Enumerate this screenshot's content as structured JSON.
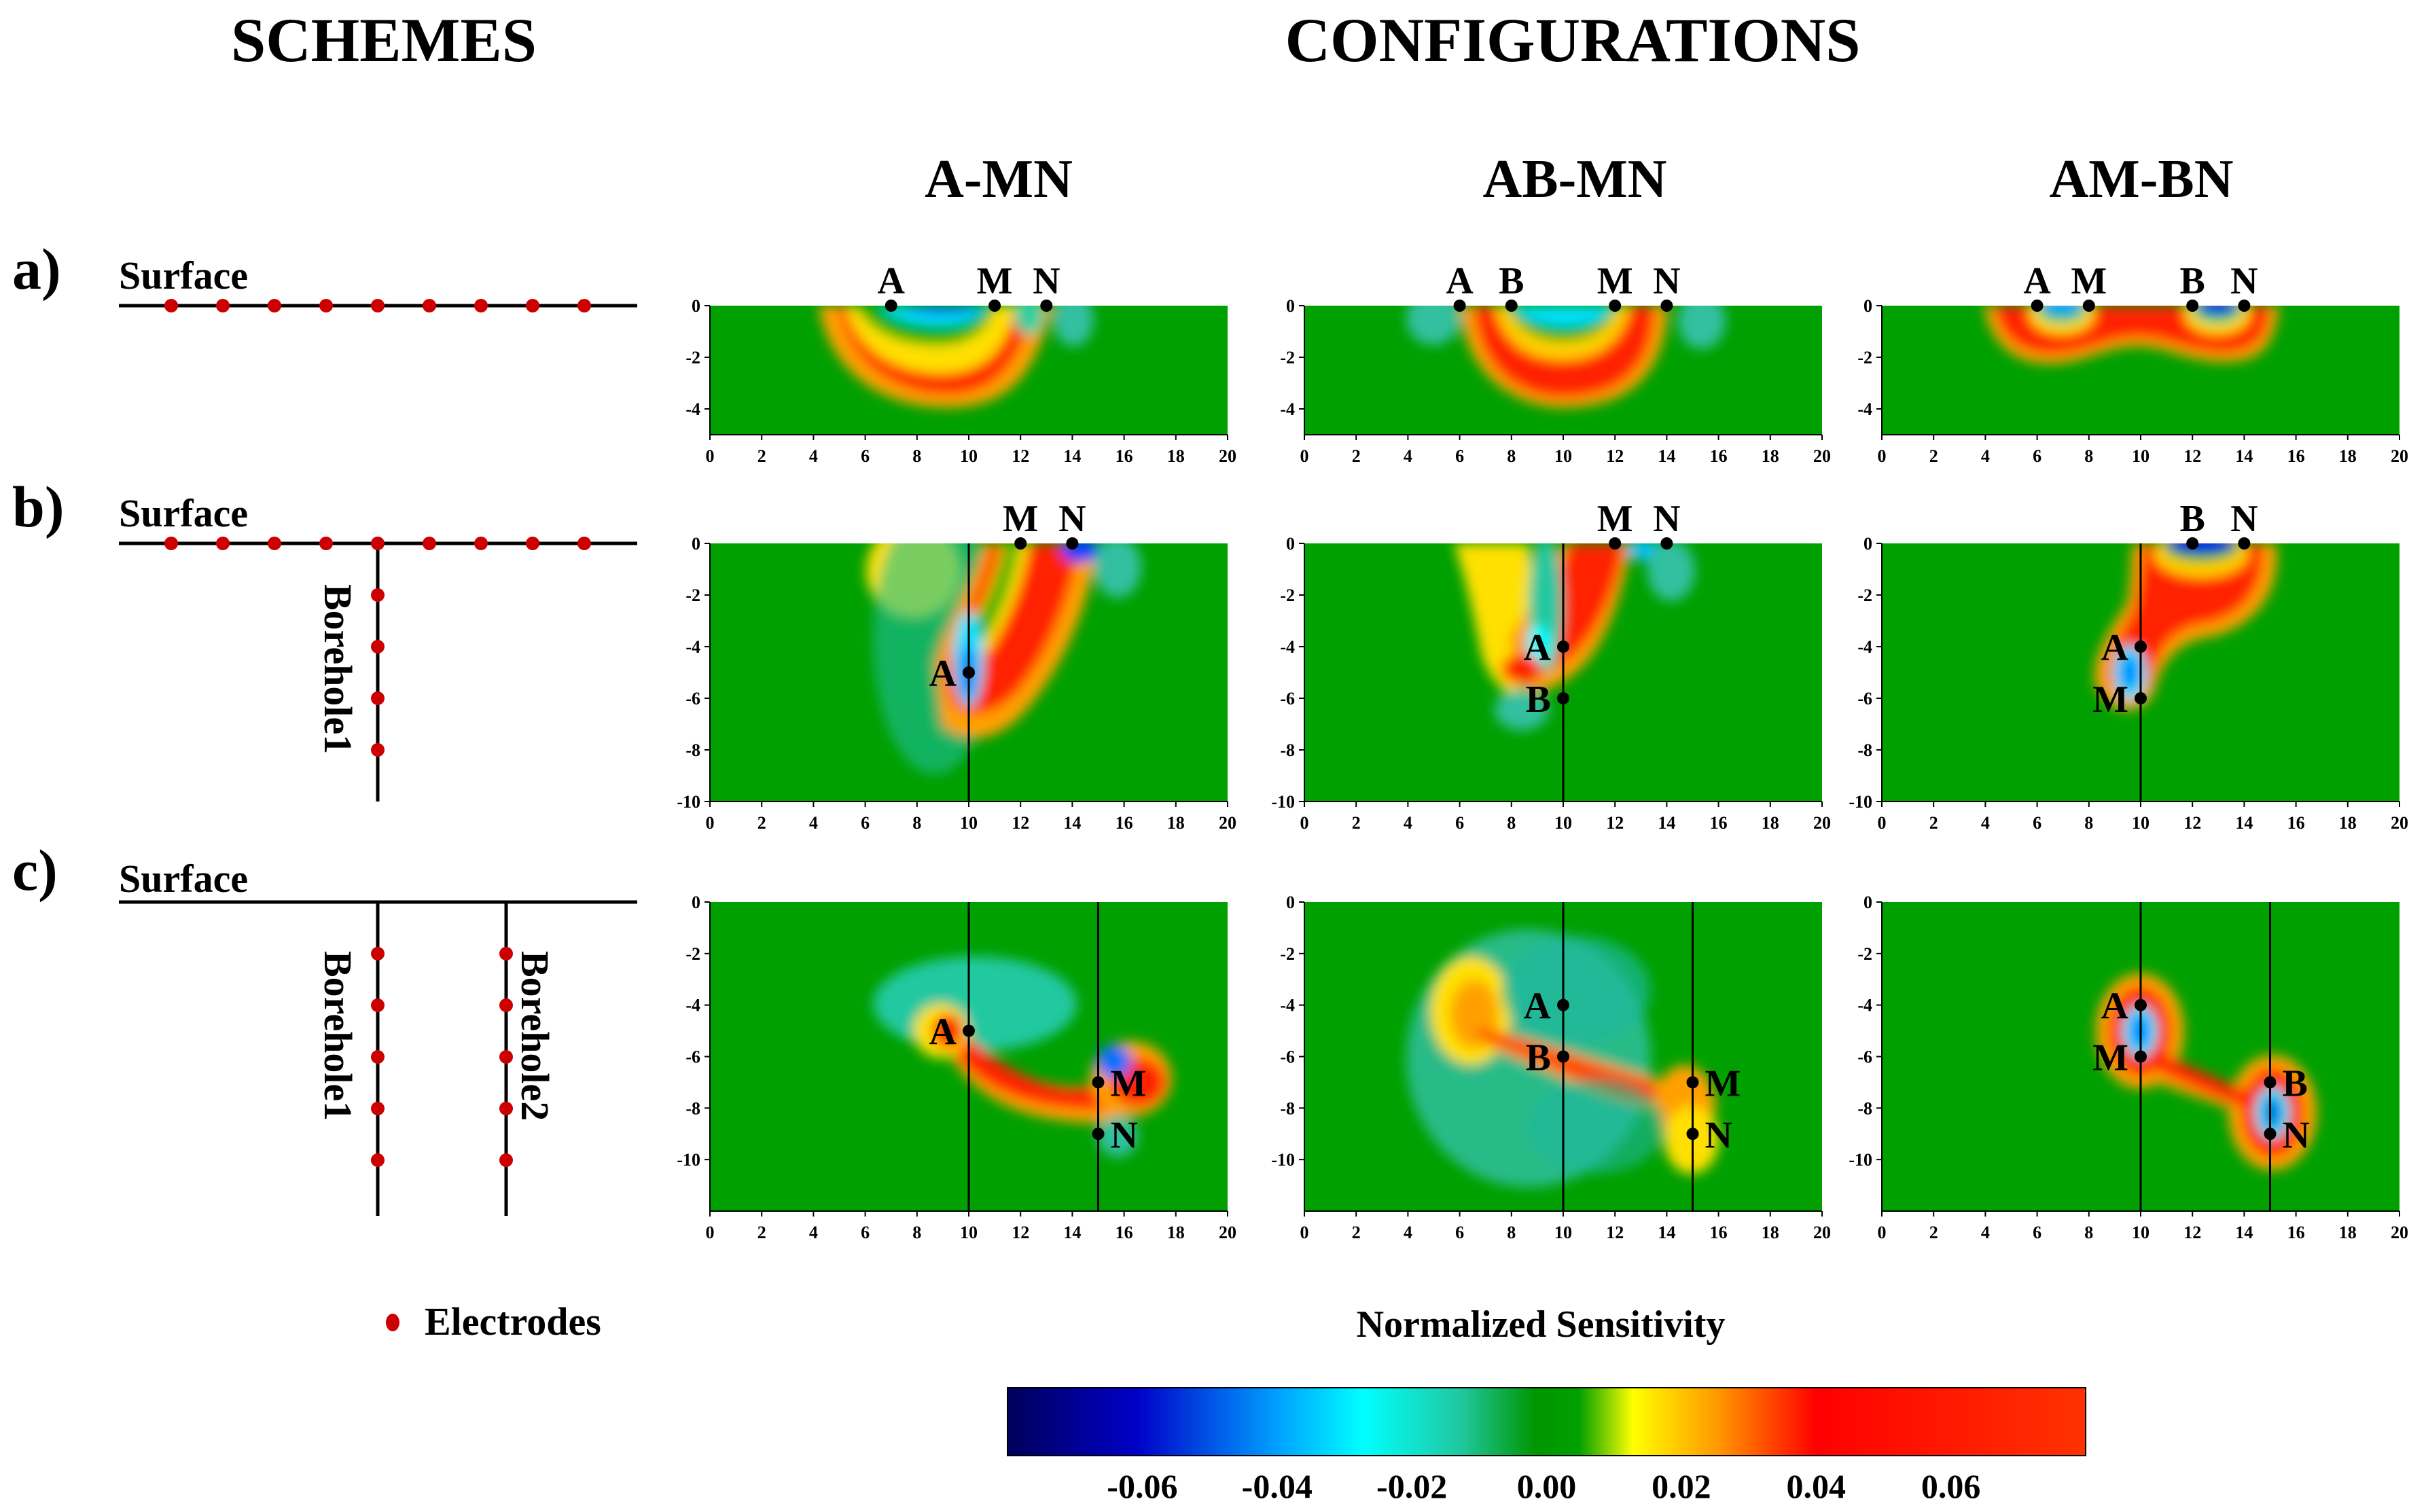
{
  "headers": {
    "schemes": "SCHEMES",
    "configurations": "CONFIGURATIONS",
    "col_titles": [
      "A-MN",
      "AB-MN",
      "AM-BN"
    ]
  },
  "rows": [
    {
      "tag": "a)",
      "surface": "Surface",
      "boreholes": []
    },
    {
      "tag": "b)",
      "surface": "Surface",
      "boreholes": [
        "Borehole1"
      ]
    },
    {
      "tag": "c)",
      "surface": "Surface",
      "boreholes": [
        "Borehole1",
        "Borehole2"
      ]
    }
  ],
  "legend": {
    "electrodes": "Electrodes",
    "colorbar_title": "Normalized Sensitivity",
    "colorbar_ticks": [
      "-0.06",
      "-0.04",
      "-0.02",
      "0.00",
      "0.02",
      "0.04",
      "0.06"
    ],
    "colorbar_tick_values": [
      -0.06,
      -0.04,
      -0.02,
      0.0,
      0.02,
      0.04,
      0.06
    ],
    "colorbar_range": [
      -0.08,
      0.08
    ],
    "colormap": [
      "#00005a",
      "#0000c8",
      "#00a0ff",
      "#00ffff",
      "#20c8a0",
      "#009600",
      "#00a000",
      "#ffff00",
      "#ff9600",
      "#ff0000",
      "#ff3200"
    ]
  },
  "colors": {
    "background_field": "#00a000",
    "positive": "#ff2000",
    "negative": "#00ffff",
    "electrode_marker": "#cc0000",
    "electrode_dot": "#000000"
  },
  "chart_data": [
    {
      "type": "heatmap",
      "row": "a",
      "config": "A-MN",
      "xlim": [
        0,
        20
      ],
      "ylim": [
        -5,
        0
      ],
      "xticks": [
        0,
        2,
        4,
        6,
        8,
        10,
        12,
        14,
        16,
        18,
        20
      ],
      "yticks": [
        0,
        -2,
        -4
      ],
      "boreholes_x": [],
      "electrodes": [
        {
          "label": "A",
          "x": 7,
          "y": 0
        },
        {
          "label": "M",
          "x": 11,
          "y": 0
        },
        {
          "label": "N",
          "x": 13,
          "y": 0
        }
      ]
    },
    {
      "type": "heatmap",
      "row": "a",
      "config": "AB-MN",
      "xlim": [
        0,
        20
      ],
      "ylim": [
        -5,
        0
      ],
      "xticks": [
        0,
        2,
        4,
        6,
        8,
        10,
        12,
        14,
        16,
        18,
        20
      ],
      "yticks": [
        0,
        -2,
        -4
      ],
      "boreholes_x": [],
      "electrodes": [
        {
          "label": "A",
          "x": 6,
          "y": 0
        },
        {
          "label": "B",
          "x": 8,
          "y": 0
        },
        {
          "label": "M",
          "x": 12,
          "y": 0
        },
        {
          "label": "N",
          "x": 14,
          "y": 0
        }
      ]
    },
    {
      "type": "heatmap",
      "row": "a",
      "config": "AM-BN",
      "xlim": [
        0,
        20
      ],
      "ylim": [
        -5,
        0
      ],
      "xticks": [
        0,
        2,
        4,
        6,
        8,
        10,
        12,
        14,
        16,
        18,
        20
      ],
      "yticks": [
        0,
        -2,
        -4
      ],
      "boreholes_x": [],
      "electrodes": [
        {
          "label": "A",
          "x": 6,
          "y": 0
        },
        {
          "label": "M",
          "x": 8,
          "y": 0
        },
        {
          "label": "B",
          "x": 12,
          "y": 0
        },
        {
          "label": "N",
          "x": 14,
          "y": 0
        }
      ]
    },
    {
      "type": "heatmap",
      "row": "b",
      "config": "A-MN",
      "xlim": [
        0,
        20
      ],
      "ylim": [
        -10,
        0
      ],
      "xticks": [
        0,
        2,
        4,
        6,
        8,
        10,
        12,
        14,
        16,
        18,
        20
      ],
      "yticks": [
        0,
        -2,
        -4,
        -6,
        -8,
        -10
      ],
      "boreholes_x": [
        10
      ],
      "electrodes": [
        {
          "label": "M",
          "x": 12,
          "y": 0
        },
        {
          "label": "N",
          "x": 14,
          "y": 0
        },
        {
          "label": "A",
          "x": 10,
          "y": -5
        }
      ]
    },
    {
      "type": "heatmap",
      "row": "b",
      "config": "AB-MN",
      "xlim": [
        0,
        20
      ],
      "ylim": [
        -10,
        0
      ],
      "xticks": [
        0,
        2,
        4,
        6,
        8,
        10,
        12,
        14,
        16,
        18,
        20
      ],
      "yticks": [
        0,
        -2,
        -4,
        -6,
        -8,
        -10
      ],
      "boreholes_x": [
        10
      ],
      "electrodes": [
        {
          "label": "M",
          "x": 12,
          "y": 0
        },
        {
          "label": "N",
          "x": 14,
          "y": 0
        },
        {
          "label": "A",
          "x": 10,
          "y": -4
        },
        {
          "label": "B",
          "x": 10,
          "y": -6
        }
      ]
    },
    {
      "type": "heatmap",
      "row": "b",
      "config": "AM-BN",
      "xlim": [
        0,
        20
      ],
      "ylim": [
        -10,
        0
      ],
      "xticks": [
        0,
        2,
        4,
        6,
        8,
        10,
        12,
        14,
        16,
        18,
        20
      ],
      "yticks": [
        0,
        -2,
        -4,
        -6,
        -8,
        -10
      ],
      "boreholes_x": [
        10
      ],
      "electrodes": [
        {
          "label": "B",
          "x": 12,
          "y": 0
        },
        {
          "label": "N",
          "x": 14,
          "y": 0
        },
        {
          "label": "A",
          "x": 10,
          "y": -4
        },
        {
          "label": "M",
          "x": 10,
          "y": -6
        }
      ]
    },
    {
      "type": "heatmap",
      "row": "c",
      "config": "A-MN",
      "xlim": [
        0,
        20
      ],
      "ylim": [
        -12,
        0
      ],
      "xticks": [
        0,
        2,
        4,
        6,
        8,
        10,
        12,
        14,
        16,
        18,
        20
      ],
      "yticks": [
        0,
        -2,
        -4,
        -6,
        -8,
        -10
      ],
      "boreholes_x": [
        10,
        15
      ],
      "electrodes": [
        {
          "label": "A",
          "x": 10,
          "y": -5
        },
        {
          "label": "M",
          "x": 15,
          "y": -7
        },
        {
          "label": "N",
          "x": 15,
          "y": -9
        }
      ]
    },
    {
      "type": "heatmap",
      "row": "c",
      "config": "AB-MN",
      "xlim": [
        0,
        20
      ],
      "ylim": [
        -12,
        0
      ],
      "xticks": [
        0,
        2,
        4,
        6,
        8,
        10,
        12,
        14,
        16,
        18,
        20
      ],
      "yticks": [
        0,
        -2,
        -4,
        -6,
        -8,
        -10
      ],
      "boreholes_x": [
        10,
        15
      ],
      "electrodes": [
        {
          "label": "A",
          "x": 10,
          "y": -4
        },
        {
          "label": "B",
          "x": 10,
          "y": -6
        },
        {
          "label": "M",
          "x": 15,
          "y": -7
        },
        {
          "label": "N",
          "x": 15,
          "y": -9
        }
      ]
    },
    {
      "type": "heatmap",
      "row": "c",
      "config": "AM-BN",
      "xlim": [
        0,
        20
      ],
      "ylim": [
        -12,
        0
      ],
      "xticks": [
        0,
        2,
        4,
        6,
        8,
        10,
        12,
        14,
        16,
        18,
        20
      ],
      "yticks": [
        0,
        -2,
        -4,
        -6,
        -8,
        -10
      ],
      "boreholes_x": [
        10,
        15
      ],
      "electrodes": [
        {
          "label": "A",
          "x": 10,
          "y": -4
        },
        {
          "label": "M",
          "x": 10,
          "y": -6
        },
        {
          "label": "B",
          "x": 15,
          "y": -7
        },
        {
          "label": "N",
          "x": 15,
          "y": -9
        }
      ]
    }
  ]
}
